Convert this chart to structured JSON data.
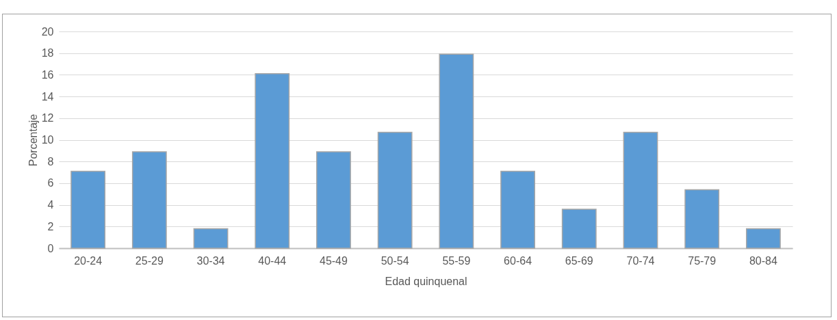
{
  "chart_data": {
    "type": "bar",
    "xlabel": "Edad quinquenal",
    "ylabel": "Porcentaje",
    "categories": [
      "20-24",
      "25-29",
      "30-34",
      "40-44",
      "45-49",
      "50-54",
      "55-59",
      "60-64",
      "65-69",
      "70-74",
      "75-79",
      "80-84"
    ],
    "values": [
      7.1,
      8.9,
      1.8,
      16.1,
      8.9,
      10.7,
      17.9,
      7.1,
      3.6,
      10.7,
      5.4,
      1.8
    ],
    "color": "#5b9bd5",
    "ylim": [
      0,
      20
    ],
    "yticks": [
      0,
      2,
      4,
      6,
      8,
      10,
      12,
      14,
      16,
      18,
      20
    ],
    "grid": "y"
  }
}
